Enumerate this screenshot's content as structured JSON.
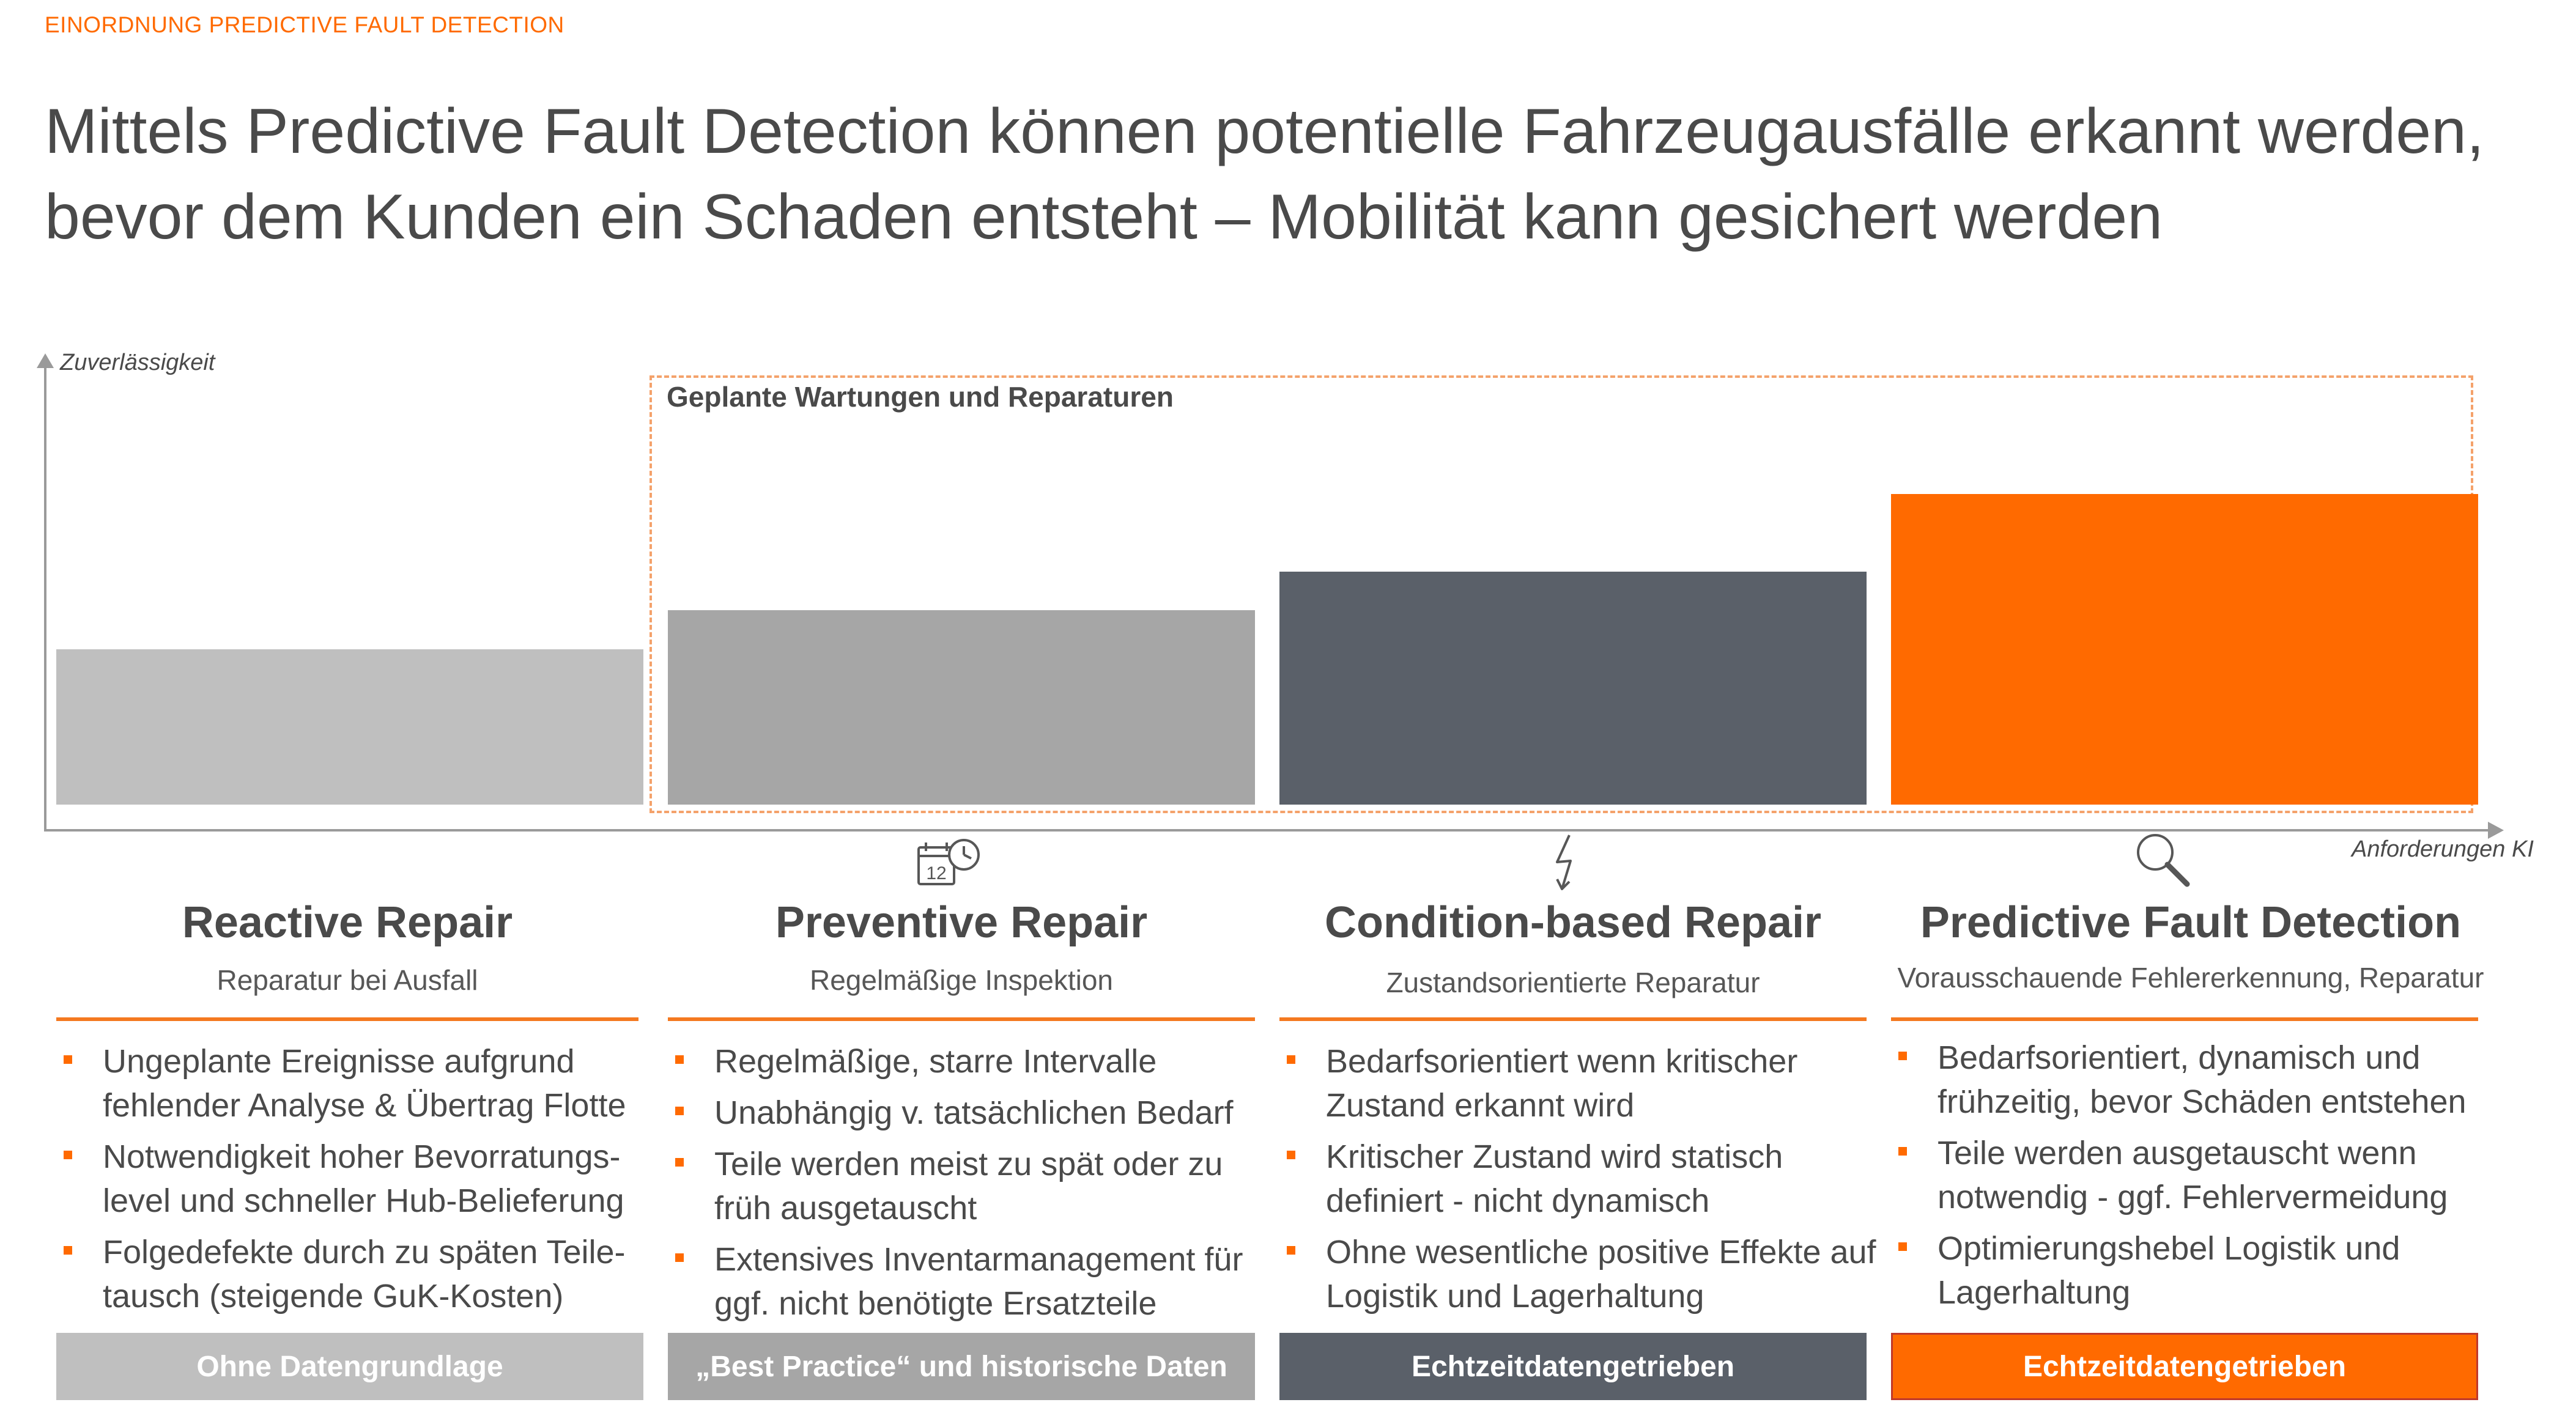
{
  "header": {
    "tag": "EINORDNUNG PREDICTIVE FAULT DETECTION",
    "headline": "Mittels Predictive Fault Detection können potentielle Fahrzeugausfälle erkannt werden, bevor dem Kunden ein Schaden entsteht – Mobilität kann gesichert werden"
  },
  "chart": {
    "y_axis_label": "Zuverlässigkeit",
    "x_axis_label": "Anforderungen KI",
    "planned_box_label": "Geplante Wartungen und Reparaturen"
  },
  "chart_data": {
    "type": "bar",
    "categories": [
      "Reactive Repair",
      "Preventive Repair",
      "Condition-based Repair",
      "Predictive Fault Detection"
    ],
    "values": [
      1.0,
      1.25,
      1.5,
      2.0
    ],
    "ylim": [
      0,
      2.6
    ],
    "grid": false,
    "colors": [
      "#BFBFBF",
      "#A6A6A6",
      "#5A6069",
      "#FF6A00"
    ]
  },
  "columns": [
    {
      "title": "Reactive Repair",
      "subtitle": "Reparatur bei Ausfall",
      "icon": "none",
      "bullets": [
        "Ungeplante Ereignisse aufgrund fehlender Analyse & Übertrag Flotte",
        "Notwendigkeit hoher Bevorratungs-level und schneller Hub-Belieferung",
        "Folgedefekte durch zu späten Teile-tausch (steigende GuK-Kosten)"
      ],
      "footer": "Ohne Datengrundlage",
      "footer_color": "#BFBFBF"
    },
    {
      "title": "Preventive Repair",
      "subtitle": "Regelmäßige Inspektion",
      "icon": "calendar-clock-icon",
      "icon_text": "12",
      "bullets": [
        "Regelmäßige, starre Intervalle",
        "Unabhängig v. tatsächlichen Bedarf",
        "Teile werden meist zu spät oder zu früh ausgetauscht",
        "Extensives Inventarmanagement für ggf. nicht benötigte Ersatzteile"
      ],
      "footer": "„Best Practice“ und historische Daten",
      "footer_color": "#A6A6A6"
    },
    {
      "title": "Condition-based Repair",
      "subtitle": "Zustandsorientierte Reparatur",
      "icon": "lightning-icon",
      "bullets": [
        "Bedarfsorientiert wenn kritischer Zustand erkannt wird",
        "Kritischer Zustand wird statisch definiert - nicht dynamisch",
        "Ohne wesentliche positive Effekte auf Logistik und Lagerhaltung"
      ],
      "footer": "Echtzeitdatengetrieben",
      "footer_color": "#5A6069"
    },
    {
      "title": "Predictive Fault Detection",
      "subtitle": "Vorausschauende Fehlererkennung, Reparatur",
      "icon": "magnifier-icon",
      "bullets": [
        "Bedarfsorientiert, dynamisch und frühzeitig, bevor Schäden entstehen",
        "Teile werden ausgetauscht wenn notwendig - ggf. Fehlervermeidung",
        "Optimierungshebel Logistik und Lagerhaltung"
      ],
      "footer": "Echtzeitdatengetrieben",
      "footer_color": "#FF6A00"
    }
  ]
}
